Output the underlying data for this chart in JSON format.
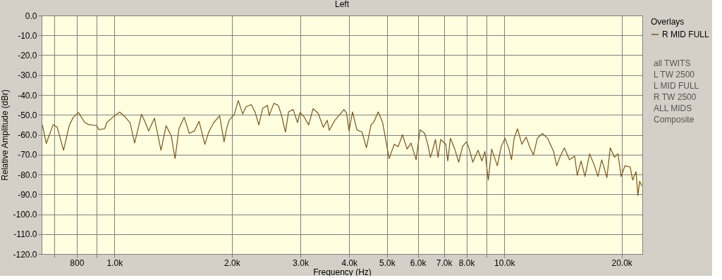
{
  "chart_data": {
    "type": "line",
    "title": "Left",
    "xlabel": "Frequency (Hz)",
    "ylabel": "Relative Amplitude (dBr)",
    "legend_title": "Overlays",
    "legend": "right",
    "grid": true,
    "log": "x",
    "xlim": [
      650,
      22600
    ],
    "xticks": [
      {
        "value": 700,
        "label": null
      },
      800,
      {
        "value": 900,
        "label": null
      },
      {
        "value": 1000,
        "label": "1.0k"
      },
      {
        "value": 2000,
        "label": "2.0k"
      },
      {
        "value": 3000,
        "label": "3.0k"
      },
      {
        "value": 4000,
        "label": "4.0k"
      },
      {
        "value": 5000,
        "label": "5.0k"
      },
      {
        "value": 6000,
        "label": "6.0k"
      },
      {
        "value": 7000,
        "label": "7.0k"
      },
      {
        "value": 8000,
        "label": "8.0k"
      },
      {
        "value": 9000,
        "label": null
      },
      {
        "value": 10000,
        "label": "10.0k"
      },
      {
        "value": 20000,
        "label": "20.0k"
      }
    ],
    "ylim": [
      -120,
      0
    ],
    "yticks": [
      {
        "value": 0,
        "label": "0.0"
      },
      {
        "value": -10,
        "label": "-10.0"
      },
      {
        "value": -20,
        "label": "-20.0"
      },
      {
        "value": -30,
        "label": "-30.0"
      },
      {
        "value": -40,
        "label": "-40.0"
      },
      {
        "value": -50,
        "label": "-50.0"
      },
      {
        "value": -60,
        "label": "-60.0"
      },
      {
        "value": -70,
        "label": "-70.0"
      },
      {
        "value": -80,
        "label": "-80.0"
      },
      {
        "value": -90,
        "label": "-90.0"
      },
      {
        "value": -100,
        "label": "-100.0"
      },
      {
        "value": -110,
        "label": "-110.0"
      },
      {
        "value": -120,
        "label": "-120.0"
      }
    ],
    "annotations": [
      "all TWITS",
      "L TW 2500",
      "L MID FULL",
      "R TW 2500",
      "ALL MIDS",
      "Composite"
    ],
    "series": [
      {
        "name": "R MID FULL",
        "color": "#7a5518",
        "x": [
          653,
          668,
          696,
          713,
          740,
          766,
          784,
          808,
          839,
          859,
          899,
          913,
          944,
          955,
          1000,
          1031,
          1063,
          1096,
          1126,
          1173,
          1200,
          1223,
          1266,
          1316,
          1356,
          1398,
          1430,
          1463,
          1509,
          1555,
          1603,
          1648,
          1705,
          1744,
          1797,
          1861,
          1910,
          1939,
          1969,
          2030,
          2077,
          2132,
          2174,
          2242,
          2293,
          2346,
          2400,
          2467,
          2494,
          2563,
          2631,
          2680,
          2745,
          2796,
          2872,
          2948,
          2993,
          3062,
          3148,
          3231,
          3330,
          3433,
          3513,
          3556,
          3677,
          3791,
          3878,
          3937,
          3997,
          4079,
          4185,
          4315,
          4429,
          4551,
          4635,
          4748,
          4874,
          5063,
          5220,
          5342,
          5480,
          5631,
          5761,
          5940,
          6078,
          6247,
          6362,
          6459,
          6508,
          6660,
          6761,
          6868,
          7076,
          7162,
          7272,
          7464,
          7637,
          7813,
          7994,
          8116,
          8303,
          8562,
          8760,
          8920,
          9097,
          9281,
          9597,
          9819,
          10046,
          10278,
          10434,
          10598,
          10808,
          11094,
          11378,
          11610,
          11879,
          12154,
          12526,
          12916,
          13378,
          13625,
          13878,
          14260,
          14695,
          15152,
          15385,
          15740,
          16104,
          16553,
          16990,
          17383,
          17786,
          18333,
          18696,
          19191,
          19574,
          19935,
          20396,
          21030,
          21350,
          21777,
          22016,
          22246,
          22519
        ],
        "values": [
          -55.1,
          -64.4,
          -54.9,
          -56.3,
          -67.8,
          -55.1,
          -51.2,
          -48.8,
          -53.9,
          -54.9,
          -55.4,
          -57.5,
          -56.9,
          -53.9,
          -50.5,
          -48.6,
          -50.9,
          -53.9,
          -64.2,
          -49.7,
          -53.9,
          -58.1,
          -51.7,
          -67.8,
          -55.4,
          -60.6,
          -72.0,
          -57.0,
          -51.2,
          -59.3,
          -58.1,
          -53.3,
          -64.8,
          -58.7,
          -53.9,
          -50.5,
          -63.6,
          -56.9,
          -52.7,
          -49.7,
          -42.8,
          -49.6,
          -46.0,
          -44.8,
          -48.5,
          -55.1,
          -46.7,
          -45.2,
          -50.3,
          -44.2,
          -45.2,
          -50.0,
          -58.7,
          -48.5,
          -47.3,
          -53.9,
          -48.8,
          -50.9,
          -55.1,
          -46.9,
          -49.2,
          -56.3,
          -52.7,
          -57.8,
          -52.7,
          -49.7,
          -47.3,
          -49.1,
          -58.1,
          -48.5,
          -57.5,
          -58.7,
          -66.6,
          -55.1,
          -53.3,
          -48.5,
          -53.9,
          -72.0,
          -64.8,
          -66.0,
          -60.0,
          -67.2,
          -64.2,
          -72.6,
          -57.5,
          -59.3,
          -64.8,
          -71.4,
          -69.6,
          -62.4,
          -71.4,
          -62.4,
          -64.8,
          -73.2,
          -61.8,
          -67.2,
          -73.8,
          -66.0,
          -63.6,
          -66.6,
          -73.8,
          -67.8,
          -73.2,
          -68.4,
          -82.8,
          -67.2,
          -75.6,
          -66.0,
          -61.8,
          -67.2,
          -72.6,
          -61.8,
          -57.0,
          -64.8,
          -61.2,
          -66.0,
          -70.2,
          -61.8,
          -59.4,
          -61.8,
          -68.4,
          -75.6,
          -71.4,
          -66.6,
          -72.6,
          -70.8,
          -80.4,
          -73.2,
          -81.0,
          -69.6,
          -75.0,
          -81.0,
          -72.6,
          -81.6,
          -66.6,
          -71.4,
          -69.6,
          -81.0,
          -75.6,
          -76.2,
          -82.8,
          -78.6,
          -90.6,
          -83.4,
          -85.8
        ]
      }
    ]
  }
}
